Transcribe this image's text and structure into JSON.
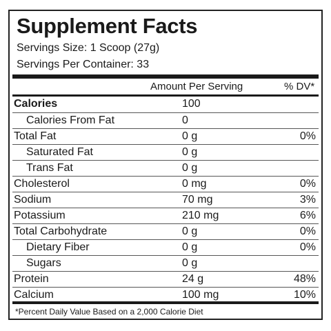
{
  "title": "Supplement Facts",
  "serving_size": "Servings Size: 1 Scoop (27g)",
  "servings_per_container": "Servings Per Container: 33",
  "columns": {
    "amount": "Amount Per Serving",
    "dv": "% DV*"
  },
  "rows": [
    {
      "label": "Calories",
      "amount": "100",
      "dv": ""
    },
    {
      "label": "Calories From Fat",
      "amount": "0",
      "dv": ""
    },
    {
      "label": "Total Fat",
      "amount": "0 g",
      "dv": "0%"
    },
    {
      "label": "Saturated Fat",
      "amount": "0 g",
      "dv": ""
    },
    {
      "label": "Trans Fat",
      "amount": "0 g",
      "dv": ""
    },
    {
      "label": "Cholesterol",
      "amount": "0 mg",
      "dv": "0%"
    },
    {
      "label": "Sodium",
      "amount": "70 mg",
      "dv": "3%"
    },
    {
      "label": "Potassium",
      "amount": "210 mg",
      "dv": "6%"
    },
    {
      "label": "Total Carbohydrate",
      "amount": "0 g",
      "dv": "0%"
    },
    {
      "label": "Dietary Fiber",
      "amount": "0 g",
      "dv": "0%"
    },
    {
      "label": "Sugars",
      "amount": "0 g",
      "dv": ""
    },
    {
      "label": "Protein",
      "amount": "24 g",
      "dv": "48%"
    },
    {
      "label": "Calcium",
      "amount": "100 mg",
      "dv": "10%"
    }
  ],
  "footnote": "*Percent Daily Value Based on a 2,000 Calorie Diet"
}
